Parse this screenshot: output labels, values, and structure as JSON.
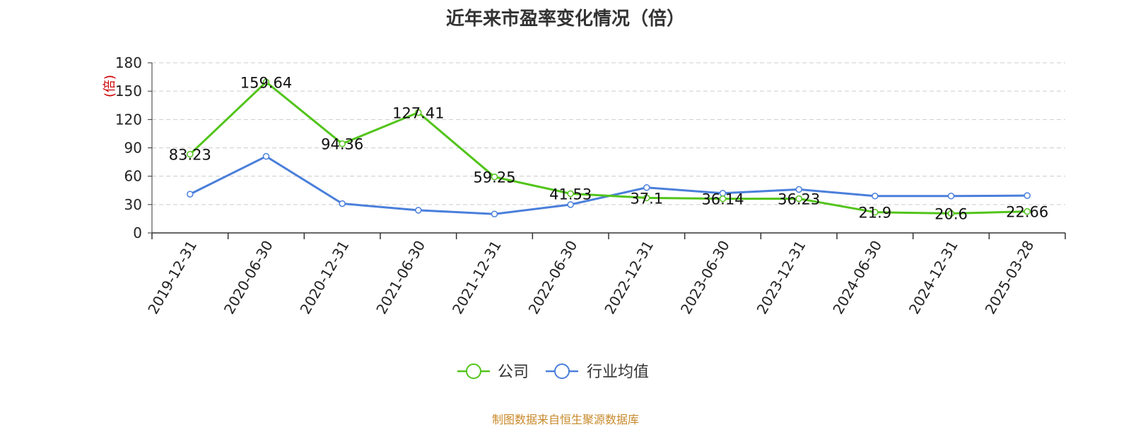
{
  "chart_data": {
    "type": "line",
    "title": "近年来市盈率变化情况（倍）",
    "ylabel": "(倍)",
    "ylim": [
      0,
      180
    ],
    "yticks": [
      0,
      30,
      60,
      90,
      120,
      150,
      180
    ],
    "grid": true,
    "legend_position": "bottom",
    "categories": [
      "2019-12-31",
      "2020-06-30",
      "2020-12-31",
      "2021-06-30",
      "2021-12-31",
      "2022-06-30",
      "2022-12-31",
      "2023-06-30",
      "2023-12-31",
      "2024-06-30",
      "2024-12-31",
      "2025-03-28"
    ],
    "series": [
      {
        "name": "公司",
        "color": "#52c41a",
        "values": [
          83.23,
          159.64,
          94.36,
          127.41,
          59.25,
          41.53,
          37.1,
          36.14,
          36.23,
          21.9,
          20.6,
          22.66
        ],
        "labels": [
          "83.23",
          "159.64",
          "94.36",
          "127.41",
          "59.25",
          "41.53",
          "37.1",
          "36.14",
          "36.23",
          "21.9",
          "20.6",
          "22.66"
        ]
      },
      {
        "name": "行业均值",
        "color": "#4a7fdb",
        "values": [
          41,
          81,
          31,
          24,
          20,
          30,
          48,
          42,
          46,
          39,
          39,
          39.5
        ]
      }
    ]
  },
  "footer": {
    "source": "制图数据来自恒生聚源数据库"
  },
  "colors": {
    "axis_label": "#cc0000",
    "grid": "#cccccc",
    "source": "#c8892a"
  }
}
